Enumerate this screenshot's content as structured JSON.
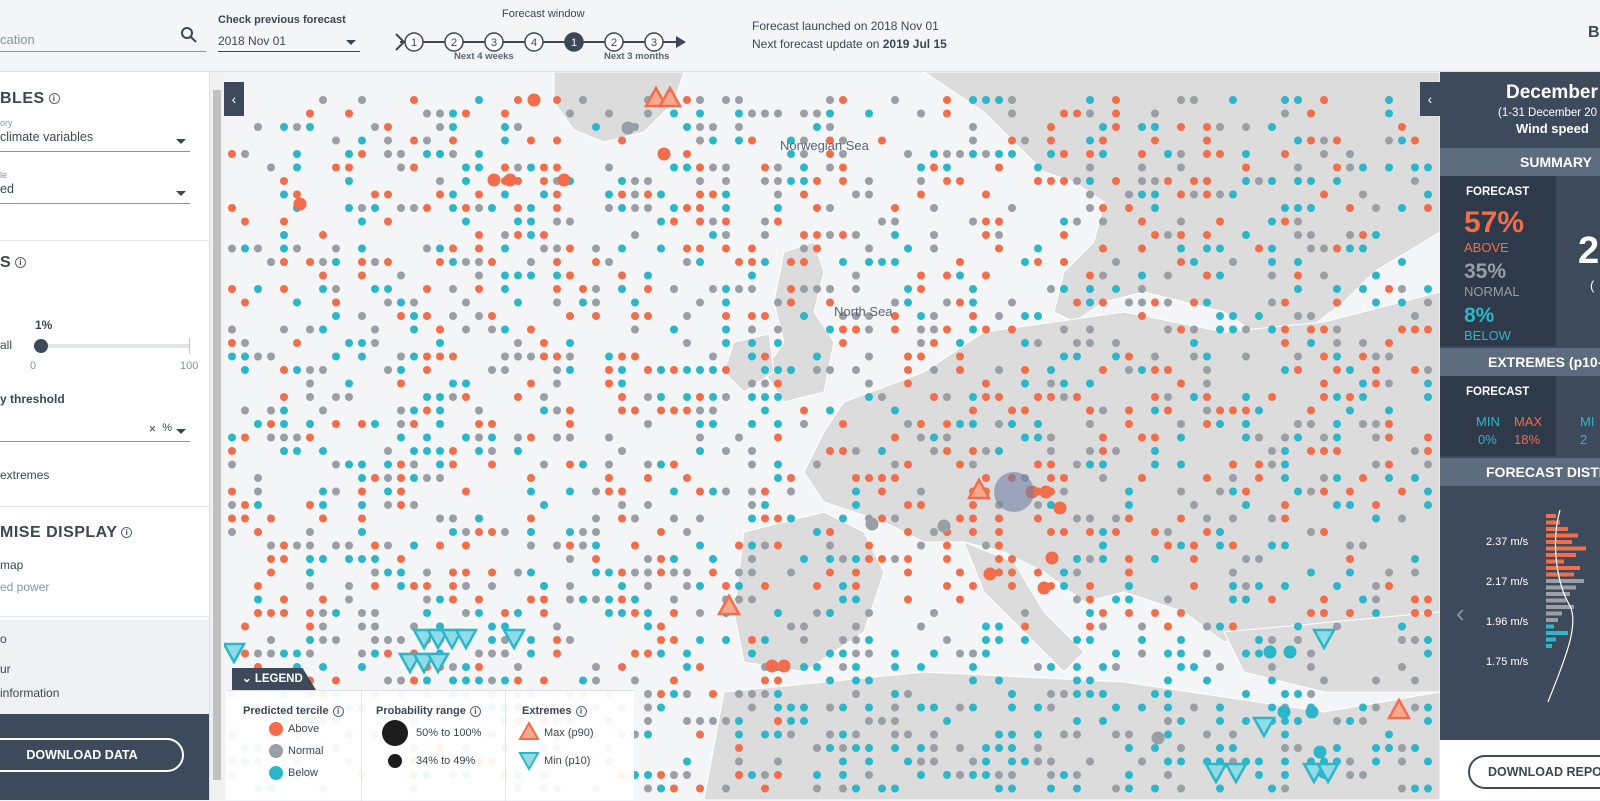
{
  "search": {
    "placeholder": "cation"
  },
  "previous_forecast": {
    "label": "Check previous forecast",
    "value": "2018 Nov 01"
  },
  "forecast_window": {
    "title": "Forecast window",
    "weeks": [
      "1",
      "2",
      "3",
      "4"
    ],
    "months": [
      "1",
      "2",
      "3"
    ],
    "active": "1",
    "weeks_label": "Next 4 weeks",
    "months_label": "Next 3 months"
  },
  "launch": {
    "prefix": "Forecast launched on ",
    "date": "2018 Nov 01",
    "update_prefix": "Next forecast update on ",
    "update_date": "2019 Jul 15"
  },
  "brand": {
    "text": "B"
  },
  "sidebar": {
    "variables_title": "BLES",
    "category_label": "ory",
    "category_value": "climate variables",
    "variable_label": "le",
    "variable_value": "ed",
    "filters_title": "S",
    "slider_label": "all",
    "slider_value": "1%",
    "slider_min": "0",
    "slider_max": "100",
    "threshold_label": "y threshold",
    "threshold_clear": "×",
    "threshold_unit": "%",
    "extremes_label": "extremes",
    "customise_title": "MISE DISPLAY",
    "opt_map": "map",
    "opt_power": "ed power",
    "gray_item1": "o",
    "gray_item2": "ur",
    "gray_item3": "information",
    "download": "DOWNLOAD DATA"
  },
  "map": {
    "labels": [
      "Norwegian Sea",
      "North Sea"
    ],
    "colors": {
      "above": "#f26d4a",
      "normal": "#9a9ea5",
      "below": "#2cb6c9",
      "land": "#dcdcdc"
    }
  },
  "legend": {
    "tab": "LEGEND",
    "tercile_title": "Predicted tercile",
    "tercile": [
      "Above",
      "Normal",
      "Below"
    ],
    "prob_title": "Probability range",
    "prob": [
      "50% to 100%",
      "34% to 49%"
    ],
    "extremes_title": "Extremes",
    "extremes": [
      "Max (p90)",
      "Min (p10)"
    ]
  },
  "right_panel": {
    "month": "December",
    "range": "(1-31 December 20",
    "variable": "Wind speed",
    "summary": "SUMMARY",
    "forecast_label": "FORECAST",
    "pct_above": "57%",
    "lbl_above": "ABOVE",
    "pct_normal": "35%",
    "lbl_normal": "NORMAL",
    "pct_below": "8%",
    "lbl_below": "BELOW",
    "big_digit": "2",
    "paren": "(",
    "extremes_band": "EXTREMES (p10-",
    "ext_forecast_label": "FORECAST",
    "min_label": "MIN",
    "max_label": "MAX",
    "min_val": "0%",
    "max_val": "18%",
    "min_cut": "MI",
    "min_cut_val": "2",
    "distrib_band": "FORECAST DISTRIB",
    "y_ticks": [
      "2.37 m/s",
      "2.17 m/s",
      "1.96 m/s",
      "1.75 m/s"
    ],
    "download": "DOWNLOAD REPO"
  }
}
